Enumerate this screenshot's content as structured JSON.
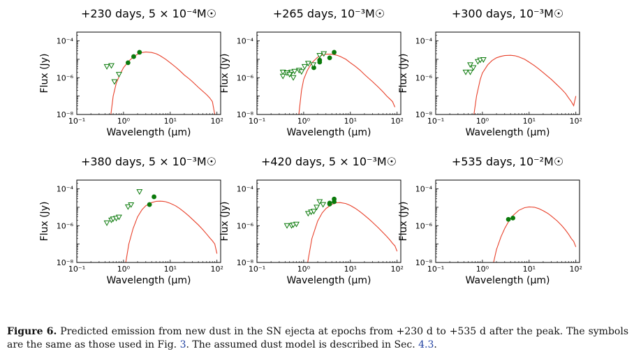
{
  "figure": {
    "xlabel": "Wavelength (μm)",
    "ylabel": "Flux (Jy)",
    "colors": {
      "model": "#e8402a",
      "detection": "#0b7a0b",
      "upper_limit": "#0b7a0b",
      "axes": "#000000"
    }
  },
  "caption": {
    "label": "Figure 6.",
    "text_1": " Predicted emission from new dust in the SN ejecta at epochs from +230 d to +535 d after the peak. The symbols are the same as those used in Fig. ",
    "ref_fig": "3",
    "text_2": ". The assumed dust model is described in Sec. ",
    "ref_sec": "4.3",
    "text_3": "."
  },
  "chart_data": [
    {
      "type": "scatter",
      "title": "+230 days, 5 × 10⁻⁴M☉",
      "xlabel": "Wavelength (μm)",
      "ylabel": "Flux (Jy)",
      "xscale": "log",
      "yscale": "log",
      "xlim": [
        0.1,
        120
      ],
      "ylim": [
        1e-08,
        0.0003
      ],
      "xticks": [
        "10⁻¹",
        "10⁰",
        "10¹",
        "10²"
      ],
      "yticks": [
        "10⁻⁸",
        "10⁻⁶",
        "10⁻⁴"
      ],
      "series": [
        {
          "kind": "model_curve",
          "x": [
            0.53,
            0.6,
            0.7,
            0.85,
            1.0,
            1.3,
            1.6,
            2.0,
            2.4,
            3.0,
            4.0,
            5.0,
            6.0,
            8.0,
            10,
            13,
            16,
            20,
            25,
            30,
            40,
            50,
            60,
            70,
            80,
            90
          ],
          "y": [
            8e-09,
            1e-07,
            5e-07,
            1.6e-06,
            3.5e-06,
            8e-06,
            1.3e-05,
            1.9e-05,
            2.3e-05,
            2.5e-05,
            2.35e-05,
            2e-05,
            1.6e-05,
            1e-05,
            6.5e-06,
            3.8e-06,
            2.4e-06,
            1.4e-06,
            9e-07,
            6e-07,
            3e-07,
            1.8e-07,
            1.2e-07,
            8e-08,
            5e-08,
            1e-08
          ]
        },
        {
          "kind": "detection",
          "x": [
            1.25,
            1.65,
            2.2
          ],
          "y": [
            6.5e-06,
            1.4e-05,
            2.4e-05
          ]
        },
        {
          "kind": "upper_limit",
          "x": [
            0.44,
            0.55,
            0.64,
            0.8
          ],
          "y": [
            4e-06,
            4.5e-06,
            6e-07,
            1.5e-06
          ]
        }
      ]
    },
    {
      "type": "scatter",
      "title": "+265 days, 10⁻³M☉",
      "xlabel": "Wavelength (μm)",
      "ylabel": "Flux (Jy)",
      "xscale": "log",
      "yscale": "log",
      "xlim": [
        0.1,
        120
      ],
      "ylim": [
        1e-08,
        0.0003
      ],
      "xticks": [
        "10⁻¹",
        "10⁰",
        "10¹",
        "10²"
      ],
      "yticks": [
        "10⁻⁸",
        "10⁻⁶",
        "10⁻⁴"
      ],
      "series": [
        {
          "kind": "model_curve",
          "x": [
            0.78,
            0.9,
            1.0,
            1.2,
            1.5,
            2.0,
            2.5,
            3.0,
            4.0,
            5.0,
            6.0,
            8.0,
            10,
            13,
            16,
            20,
            25,
            30,
            40,
            50,
            60,
            70,
            80,
            90
          ],
          "y": [
            8e-09,
            2e-07,
            8e-07,
            2.5e-06,
            6.5e-06,
            1.3e-05,
            1.7e-05,
            1.9e-05,
            1.9e-05,
            1.7e-05,
            1.45e-05,
            1e-05,
            6.5e-06,
            4e-06,
            2.6e-06,
            1.5e-06,
            9e-07,
            6e-07,
            3e-07,
            1.7e-07,
            1e-07,
            7e-08,
            5e-08,
            2.5e-08
          ]
        },
        {
          "kind": "detection",
          "x": [
            1.65,
            2.2,
            2.2,
            3.6,
            4.5
          ],
          "y": [
            3.5e-06,
            7e-06,
            9e-06,
            1.2e-05,
            2.4e-05
          ]
        },
        {
          "kind": "upper_limit",
          "x": [
            0.36,
            0.44,
            0.55,
            0.64,
            0.8,
            0.9,
            1.05,
            1.25,
            1.6,
            2.2,
            2.7,
            0.36,
            0.5,
            0.6
          ],
          "y": [
            2e-06,
            1.8e-06,
            2e-06,
            2.2e-06,
            2.5e-06,
            2.1e-06,
            4e-06,
            6e-06,
            5e-06,
            1.6e-05,
            2e-05,
            1.2e-06,
            1.5e-06,
            1e-06
          ]
        }
      ]
    },
    {
      "type": "scatter",
      "title": "+300 days, 10⁻³M☉",
      "xlabel": "Wavelength (μm)",
      "ylabel": "Flux (Jy)",
      "xscale": "log",
      "yscale": "log",
      "xlim": [
        0.1,
        120
      ],
      "ylim": [
        1e-08,
        0.0003
      ],
      "xticks": [
        "10⁻¹",
        "10⁰",
        "10¹",
        "10²"
      ],
      "yticks": [
        "10⁻⁸",
        "10⁻⁶",
        "10⁻⁴"
      ],
      "series": [
        {
          "kind": "model_curve",
          "x": [
            0.65,
            0.75,
            0.9,
            1.0,
            1.3,
            1.6,
            2.0,
            2.5,
            3.0,
            4.0,
            5.0,
            6.0,
            8.0,
            10,
            13,
            16,
            20,
            30,
            40,
            50,
            60,
            70,
            80,
            90,
            100
          ],
          "y": [
            8e-09,
            1e-07,
            8e-07,
            1.8e-06,
            5e-06,
            8.5e-06,
            1.2e-05,
            1.45e-05,
            1.6e-05,
            1.65e-05,
            1.55e-05,
            1.35e-05,
            1e-05,
            7e-06,
            4.5e-06,
            3e-06,
            1.9e-06,
            8e-07,
            4e-07,
            2.3e-07,
            1.4e-07,
            8e-08,
            5e-08,
            3e-08,
            1e-07
          ]
        },
        {
          "kind": "upper_limit",
          "x": [
            0.44,
            0.55,
            0.55,
            0.64,
            0.8,
            0.9,
            1.05
          ],
          "y": [
            2e-06,
            2e-06,
            5e-06,
            3.5e-06,
            7.5e-06,
            9e-06,
            9.5e-06
          ]
        }
      ]
    },
    {
      "type": "scatter",
      "title": "+380 days, 5 × 10⁻³M☉",
      "xlabel": "Wavelength (μm)",
      "ylabel": "Flux (Jy)",
      "xscale": "log",
      "yscale": "log",
      "xlim": [
        0.1,
        120
      ],
      "ylim": [
        1e-08,
        0.0003
      ],
      "xticks": [
        "10⁻¹",
        "10⁰",
        "10¹",
        "10²"
      ],
      "yticks": [
        "10⁻⁸",
        "10⁻⁶",
        "10⁻⁴"
      ],
      "series": [
        {
          "kind": "model_curve",
          "x": [
            1.1,
            1.3,
            1.6,
            2.0,
            2.5,
            3.0,
            4.0,
            5.0,
            6.0,
            7.0,
            8.0,
            10,
            13,
            16,
            20,
            25,
            30,
            40,
            50,
            60,
            70,
            80,
            90,
            100
          ],
          "y": [
            8e-09,
            1e-07,
            7e-07,
            3e-06,
            7.5e-06,
            1.2e-05,
            1.8e-05,
            2.1e-05,
            2.15e-05,
            2.1e-05,
            2e-05,
            1.65e-05,
            1.2e-05,
            8.5e-06,
            5.5e-06,
            3.4e-06,
            2.2e-06,
            1.1e-06,
            6e-07,
            3.5e-07,
            2.2e-07,
            1.5e-07,
            1e-07,
            3e-08
          ]
        },
        {
          "kind": "detection",
          "x": [
            3.6,
            4.5
          ],
          "y": [
            1.4e-05,
            3.7e-05
          ]
        },
        {
          "kind": "upper_limit",
          "x": [
            0.44,
            0.55,
            0.6,
            0.7,
            0.8,
            1.25,
            1.45,
            2.2
          ],
          "y": [
            1.4e-06,
            2e-06,
            2.3e-06,
            2.5e-06,
            2.9e-06,
            1.05e-05,
            1.35e-05,
            7e-05
          ]
        }
      ]
    },
    {
      "type": "scatter",
      "title": "+420 days, 5 × 10⁻³M☉",
      "xlabel": "Wavelength (μm)",
      "ylabel": "Flux (Jy)",
      "xscale": "log",
      "yscale": "log",
      "xlim": [
        0.1,
        120
      ],
      "ylim": [
        1e-08,
        0.0003
      ],
      "xticks": [
        "10⁻¹",
        "10⁰",
        "10¹",
        "10²"
      ],
      "yticks": [
        "10⁻⁸",
        "10⁻⁶",
        "10⁻⁴"
      ],
      "series": [
        {
          "kind": "model_curve",
          "x": [
            1.2,
            1.5,
            2.0,
            2.5,
            3.0,
            4.0,
            5.0,
            6.0,
            8.0,
            10,
            13,
            16,
            20,
            25,
            30,
            40,
            50,
            60,
            70,
            80,
            90,
            100
          ],
          "y": [
            8e-09,
            2e-07,
            1.8e-06,
            5e-06,
            8.5e-06,
            1.45e-05,
            1.75e-05,
            1.8e-05,
            1.6e-05,
            1.25e-05,
            8.5e-06,
            5.8e-06,
            3.7e-06,
            2.3e-06,
            1.5e-06,
            7.5e-07,
            4.2e-07,
            2.6e-07,
            1.7e-07,
            1.1e-07,
            8e-08,
            4e-08
          ]
        },
        {
          "kind": "detection",
          "x": [
            3.6,
            4.5,
            4.5,
            3.6
          ],
          "y": [
            1.5e-05,
            2e-05,
            2.8e-05,
            1.7e-05
          ]
        },
        {
          "kind": "upper_limit",
          "x": [
            0.44,
            0.55,
            0.6,
            0.7,
            1.25,
            1.45,
            1.65,
            1.9,
            2.2,
            2.6
          ],
          "y": [
            1e-06,
            1e-06,
            1.1e-06,
            1.2e-06,
            4.6e-06,
            5.5e-06,
            6e-06,
            1e-05,
            2e-05,
            1.4e-05
          ]
        }
      ]
    },
    {
      "type": "scatter",
      "title": "+535 days, 10⁻²M☉",
      "xlabel": "Wavelength (μm)",
      "ylabel": "Flux (Jy)",
      "xscale": "log",
      "yscale": "log",
      "xlim": [
        0.1,
        120
      ],
      "ylim": [
        1e-08,
        0.0003
      ],
      "xticks": [
        "10⁻¹",
        "10⁰",
        "10¹",
        "10²"
      ],
      "yticks": [
        "10⁻⁸",
        "10⁻⁶",
        "10⁻⁴"
      ],
      "series": [
        {
          "kind": "model_curve",
          "x": [
            1.7,
            2.0,
            2.5,
            3.0,
            3.6,
            4.5,
            6.0,
            8.0,
            10,
            13,
            16,
            20,
            25,
            30,
            40,
            50,
            60,
            70,
            80,
            90,
            100
          ],
          "y": [
            8e-09,
            5e-08,
            2.5e-07,
            7e-07,
            1.6e-06,
            3.5e-06,
            6.8e-06,
            9.5e-06,
            1.05e-05,
            1e-05,
            8.5e-06,
            6.5e-06,
            4.7e-06,
            3.3e-06,
            1.8e-06,
            1e-06,
            5.8e-07,
            3.4e-07,
            2e-07,
            1.4e-07,
            7e-08
          ]
        },
        {
          "kind": "detection",
          "x": [
            3.6,
            4.5
          ],
          "y": [
            2.2e-06,
            2.6e-06
          ]
        }
      ]
    }
  ]
}
